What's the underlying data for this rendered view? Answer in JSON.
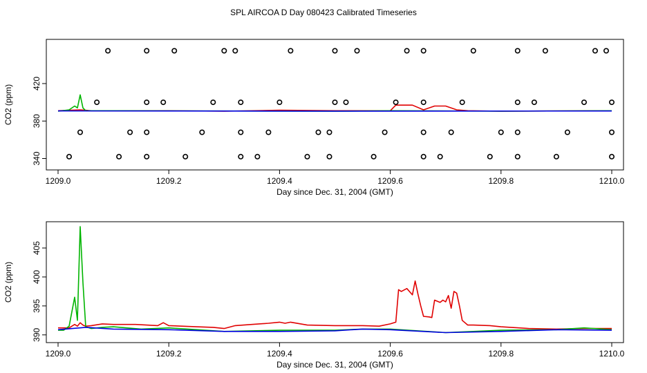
{
  "title": "SPL AIRCOA D  Day 080423  Calibrated Timeseries",
  "colors": {
    "red": "#e00000",
    "green": "#00b400",
    "blue": "#0000e0",
    "markers": "#000000"
  },
  "chart_data": [
    {
      "type": "scatter",
      "xlabel": "Day since Dec. 31, 2004 (GMT)",
      "ylabel": "CO2 (ppm)",
      "xlim": [
        1209.0,
        1210.0
      ],
      "ylim": [
        333,
        462
      ],
      "x_ticks": [
        "1209.0",
        "1209.2",
        "1209.4",
        "1209.6",
        "1209.8",
        "1210.0"
      ],
      "y_ticks": [
        "340",
        "380",
        "420"
      ],
      "calibration_points": {
        "y455": [
          1209.09,
          1209.16,
          1209.21,
          1209.3,
          1209.32,
          1209.42,
          1209.5,
          1209.54,
          1209.63,
          1209.66,
          1209.75,
          1209.83,
          1209.88,
          1209.97,
          1209.99
        ],
        "y400": [
          1209.07,
          1209.16,
          1209.19,
          1209.28,
          1209.33,
          1209.4,
          1209.5,
          1209.52,
          1209.61,
          1209.66,
          1209.73,
          1209.83,
          1209.86,
          1209.95,
          1210.0
        ],
        "y368": [
          1209.04,
          1209.13,
          1209.16,
          1209.26,
          1209.33,
          1209.38,
          1209.47,
          1209.49,
          1209.59,
          1209.66,
          1209.71,
          1209.8,
          1209.83,
          1209.92,
          1210.0
        ],
        "y342": [
          1209.02,
          1209.11,
          1209.16,
          1209.23,
          1209.33,
          1209.36,
          1209.45,
          1209.49,
          1209.57,
          1209.66,
          1209.69,
          1209.78,
          1209.83,
          1209.9,
          1210.0
        ]
      },
      "series": [
        {
          "color": "red",
          "x": [
            1209.0,
            1209.04,
            1209.06,
            1209.2,
            1209.3,
            1209.4,
            1209.5,
            1209.6,
            1209.61,
            1209.64,
            1209.66,
            1209.68,
            1209.7,
            1209.72,
            1209.74,
            1209.8,
            1210.0
          ],
          "y": [
            391,
            392,
            391,
            391,
            390.5,
            391.5,
            391,
            391,
            397,
            397,
            392,
            396,
            396,
            392,
            391,
            390.5,
            391
          ]
        },
        {
          "color": "green",
          "x": [
            1209.0,
            1209.02,
            1209.03,
            1209.035,
            1209.04,
            1209.045,
            1209.05,
            1209.1,
            1209.5,
            1209.6,
            1209.8,
            1210.0
          ],
          "y": [
            390.5,
            392,
            396,
            394,
            408,
            394,
            391,
            391,
            390.5,
            391,
            390.5,
            391
          ]
        },
        {
          "color": "blue",
          "x": [
            1209.0,
            1209.5,
            1210.0
          ],
          "y": [
            390.8,
            390.6,
            390.7
          ]
        }
      ]
    },
    {
      "type": "line",
      "xlabel": "Day since Dec. 31, 2004 (GMT)",
      "ylabel": "CO2 (ppm)",
      "xlim": [
        1209.0,
        1210.0
      ],
      "ylim": [
        389.5,
        408.7
      ],
      "x_ticks": [
        "1209.0",
        "1209.2",
        "1209.4",
        "1209.6",
        "1209.8",
        "1210.0"
      ],
      "y_ticks": [
        "390",
        "395",
        "400",
        "405"
      ],
      "series": [
        {
          "color": "red",
          "x": [
            1209.0,
            1209.02,
            1209.03,
            1209.035,
            1209.04,
            1209.045,
            1209.05,
            1209.06,
            1209.08,
            1209.1,
            1209.12,
            1209.14,
            1209.16,
            1209.18,
            1209.19,
            1209.2,
            1209.25,
            1209.28,
            1209.3,
            1209.32,
            1209.35,
            1209.38,
            1209.4,
            1209.41,
            1209.42,
            1209.45,
            1209.5,
            1209.52,
            1209.55,
            1209.58,
            1209.6,
            1209.61,
            1209.615,
            1209.62,
            1209.63,
            1209.64,
            1209.645,
            1209.65,
            1209.655,
            1209.66,
            1209.67,
            1209.675,
            1209.68,
            1209.69,
            1209.695,
            1209.7,
            1209.705,
            1209.71,
            1209.715,
            1209.72,
            1209.725,
            1209.73,
            1209.74,
            1209.75,
            1209.78,
            1209.8,
            1209.85,
            1209.9,
            1209.95,
            1210.0
          ],
          "y": [
            391.2,
            391.2,
            391.8,
            391.5,
            392.1,
            391.7,
            391.5,
            391.6,
            391.9,
            391.8,
            391.8,
            391.8,
            391.7,
            391.6,
            392.1,
            391.6,
            391.4,
            391.3,
            391.1,
            391.6,
            391.8,
            392.0,
            392.2,
            392.0,
            392.2,
            391.7,
            391.6,
            391.6,
            391.6,
            391.5,
            391.9,
            392.2,
            397.8,
            397.5,
            398.0,
            396.9,
            399.3,
            397.0,
            395.0,
            393.2,
            393.1,
            393.0,
            396.0,
            395.6,
            396.0,
            395.7,
            396.8,
            394.6,
            397.5,
            397.2,
            395.0,
            392.5,
            391.7,
            391.7,
            391.6,
            391.4,
            391.1,
            391.0,
            391.1,
            391.1
          ]
        },
        {
          "color": "green",
          "x": [
            1209.0,
            1209.01,
            1209.02,
            1209.025,
            1209.03,
            1209.035,
            1209.04,
            1209.045,
            1209.05,
            1209.06,
            1209.08,
            1209.1,
            1209.15,
            1209.2,
            1209.3,
            1209.4,
            1209.5,
            1209.55,
            1209.6,
            1209.7,
            1209.8,
            1209.9,
            1209.95,
            1210.0
          ],
          "y": [
            390.8,
            390.8,
            391.5,
            394.0,
            396.5,
            392.5,
            408.7,
            399.0,
            391.4,
            391.1,
            391.3,
            391.4,
            391.0,
            391.2,
            390.6,
            390.8,
            390.8,
            391.0,
            391.0,
            390.4,
            390.8,
            390.9,
            391.2,
            390.9
          ]
        },
        {
          "color": "blue",
          "x": [
            1209.0,
            1209.05,
            1209.1,
            1209.2,
            1209.3,
            1209.4,
            1209.5,
            1209.55,
            1209.6,
            1209.7,
            1209.8,
            1209.9,
            1210.0
          ],
          "y": [
            390.9,
            391.3,
            391.0,
            390.9,
            390.6,
            390.6,
            390.7,
            391.0,
            390.9,
            390.4,
            390.6,
            390.9,
            390.8
          ]
        }
      ]
    }
  ]
}
